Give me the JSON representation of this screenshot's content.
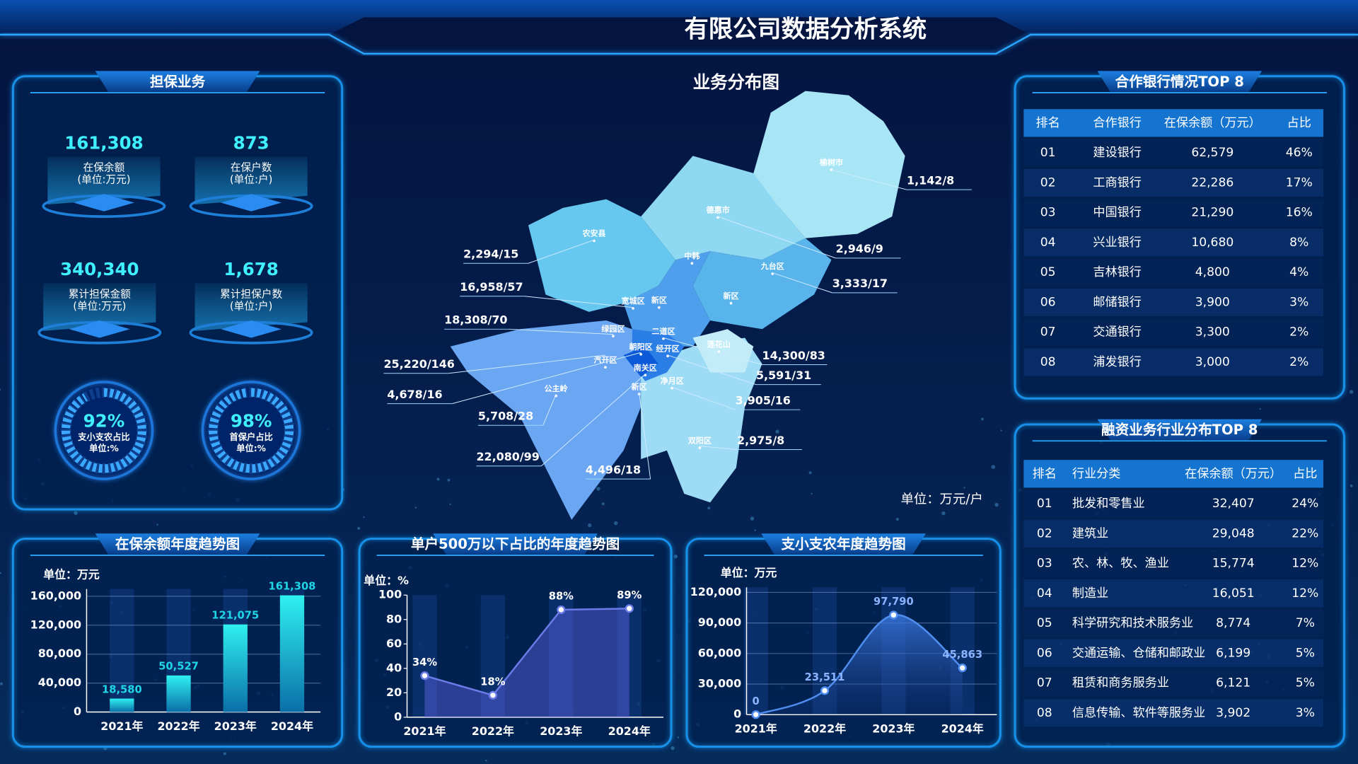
{
  "header": {
    "title": "有限公司数据分析系统"
  },
  "guarantee": {
    "title": "担保业务",
    "kpis": [
      {
        "value": "161,308",
        "label": "在保余额",
        "unit": "(单位:万元)"
      },
      {
        "value": "873",
        "label": "在保户数",
        "unit": "(单位:户)"
      },
      {
        "value": "340,340",
        "label": "累计担保金额",
        "unit": "(单位:万元)"
      },
      {
        "value": "1,678",
        "label": "累计担保户数",
        "unit": "(单位:户)"
      }
    ],
    "gauges": [
      {
        "value": 92,
        "value_label": "92%",
        "label": "支小支农占比",
        "unit": "单位:%"
      },
      {
        "value": 98,
        "value_label": "98%",
        "label": "首保户占比",
        "unit": "单位:%"
      }
    ]
  },
  "map": {
    "title": "业务分布图",
    "unit": "单位：万元/户",
    "regions": [
      "榆树市",
      "德惠市",
      "农安县",
      "中韩",
      "九台区",
      "宽城区",
      "新区",
      "新区",
      "绿园区",
      "二道区",
      "朝阳区",
      "经开区",
      "汽开区",
      "南关区",
      "莲花山",
      "净月区",
      "公主岭",
      "新区",
      "双阳区"
    ],
    "labels": [
      "1,142/8",
      "2,946/9",
      "3,333/17",
      "2,294/15",
      "16,958/57",
      "18,308/70",
      "25,220/146",
      "4,678/16",
      "5,708/28",
      "22,080/99",
      "4,496/18",
      "14,300/83",
      "5,591/31",
      "3,905/16",
      "2,975/8"
    ]
  },
  "bank_table": {
    "title": "合作银行情况TOP 8",
    "columns": [
      "排名",
      "合作银行",
      "在保余额（万元）",
      "占比"
    ],
    "rows": [
      [
        "01",
        "建设银行",
        "62,579",
        "46%"
      ],
      [
        "02",
        "工商银行",
        "22,286",
        "17%"
      ],
      [
        "03",
        "中国银行",
        "21,290",
        "16%"
      ],
      [
        "04",
        "兴业银行",
        "10,680",
        "8%"
      ],
      [
        "05",
        "吉林银行",
        "4,800",
        "4%"
      ],
      [
        "06",
        "邮储银行",
        "3,900",
        "3%"
      ],
      [
        "07",
        "交通银行",
        "3,300",
        "2%"
      ],
      [
        "08",
        "浦发银行",
        "3,000",
        "2%"
      ]
    ]
  },
  "industry_table": {
    "title": "融资业务行业分布TOP 8",
    "columns": [
      "排名",
      "行业分类",
      "在保余额（万元）",
      "占比"
    ],
    "rows": [
      [
        "01",
        "批发和零售业",
        "32,407",
        "24%"
      ],
      [
        "02",
        "建筑业",
        "29,048",
        "22%"
      ],
      [
        "03",
        "农、林、牧、渔业",
        "15,774",
        "12%"
      ],
      [
        "04",
        "制造业",
        "16,051",
        "12%"
      ],
      [
        "05",
        "科学研究和技术服务业",
        "8,774",
        "7%"
      ],
      [
        "06",
        "交通运输、仓储和邮政业",
        "6,199",
        "5%"
      ],
      [
        "07",
        "租赁和商务服务业",
        "6,121",
        "5%"
      ],
      [
        "08",
        "信息传输、软件等服务业",
        "3,902",
        "3%"
      ]
    ]
  },
  "chart_data": [
    {
      "type": "bar",
      "title": "在保余额年度趋势图",
      "unit": "单位：万元",
      "categories": [
        "2021年",
        "2022年",
        "2023年",
        "2024年"
      ],
      "values": [
        18580,
        50527,
        121075,
        161308
      ],
      "value_labels": [
        "18,580",
        "50,527",
        "121,075",
        "161,308"
      ],
      "color": "#1fd6e6",
      "ylim": [
        0,
        170000
      ],
      "yticks": [
        0,
        {
          "value": 40000,
          "label": "40,000"
        },
        {
          "value": 80000,
          "label": "80,000"
        },
        {
          "value": 120000,
          "label": "120,000"
        },
        {
          "value": 160000,
          "label": "160,000"
        }
      ],
      "grid": true
    },
    {
      "type": "line",
      "title": "单户500万以下占比的年度趋势图",
      "unit": "单位：%",
      "categories": [
        "2021年",
        "2022年",
        "2023年",
        "2024年"
      ],
      "values": [
        34,
        18,
        88,
        89
      ],
      "value_labels": [
        "34%",
        "18%",
        "88%",
        "89%"
      ],
      "color": "#6b7be8",
      "ylim": [
        0,
        100
      ],
      "yticks": [
        0,
        20,
        40,
        60,
        80,
        100
      ],
      "grid": false
    },
    {
      "type": "area",
      "title": "支小支农年度趋势图",
      "unit": "单位：万元",
      "categories": [
        "2021年",
        "2022年",
        "2023年",
        "2024年"
      ],
      "values": [
        0,
        23511,
        97790,
        45863
      ],
      "value_labels": [
        "0",
        "23,511",
        "97,790",
        "45,863"
      ],
      "color": "#4f8ef0",
      "ylim": [
        0,
        125000
      ],
      "yticks": [
        0,
        {
          "value": 30000,
          "label": "30,000"
        },
        {
          "value": 60000,
          "label": "60,000"
        },
        {
          "value": 90000,
          "label": "90,000"
        },
        {
          "value": 120000,
          "label": "120,000"
        }
      ],
      "grid": true
    }
  ]
}
